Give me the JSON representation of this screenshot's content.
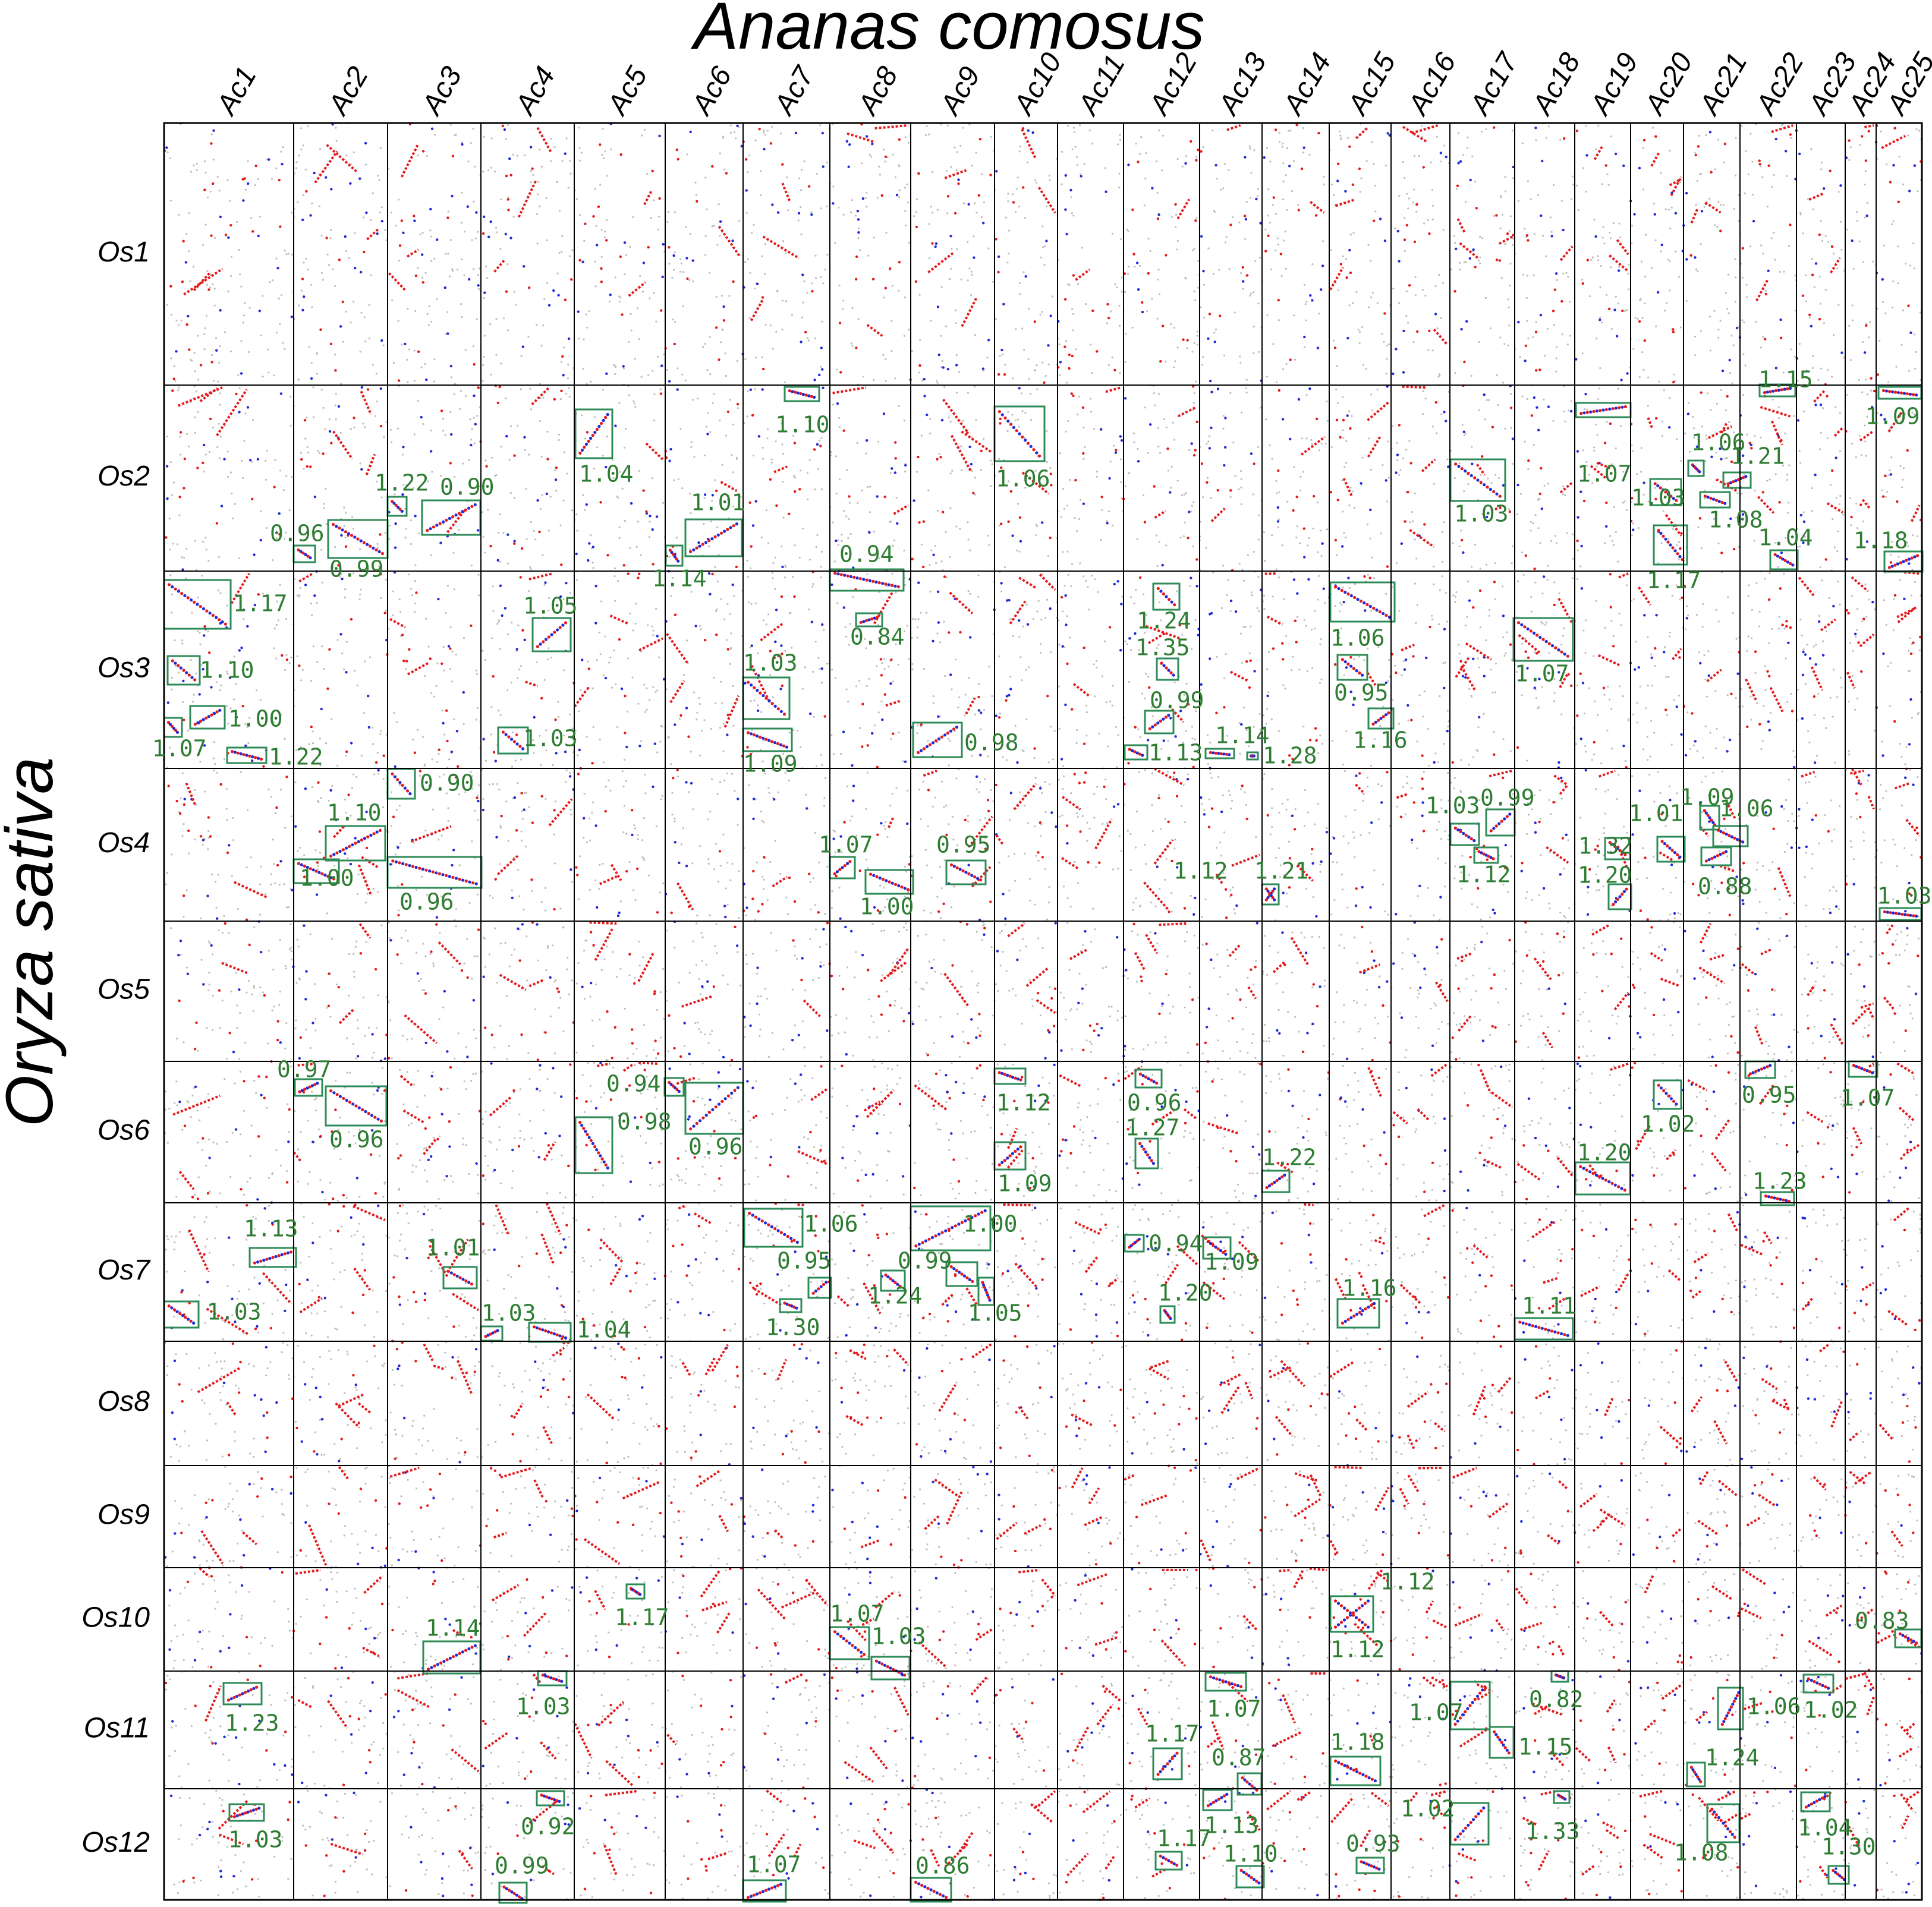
{
  "chart_data": {
    "type": "scatter",
    "title": "Ananas comosus",
    "ylabel": "Oryza sativa",
    "x_chromosomes": [
      "Ac1",
      "Ac2",
      "Ac3",
      "Ac4",
      "Ac5",
      "Ac6",
      "Ac7",
      "Ac8",
      "Ac9",
      "Ac10",
      "Ac11",
      "Ac12",
      "Ac13",
      "Ac14",
      "Ac15",
      "Ac16",
      "Ac17",
      "Ac18",
      "Ac19",
      "Ac20",
      "Ac21",
      "Ac22",
      "Ac23",
      "Ac24",
      "Ac25"
    ],
    "y_chromosomes": [
      "Os1",
      "Os2",
      "Os3",
      "Os4",
      "Os5",
      "Os6",
      "Os7",
      "Os8",
      "Os9",
      "Os10",
      "Os11",
      "Os12"
    ],
    "grid": true,
    "highlighted_blocks": [
      {
        "os": "Os2",
        "ac": "Ac7",
        "ks": "1.10"
      },
      {
        "os": "Os2",
        "ac": "Ac5",
        "ks": "1.04"
      },
      {
        "os": "Os2",
        "ac": "Ac10",
        "ks": "1.06"
      },
      {
        "os": "Os2",
        "ac": "Ac3",
        "ks": "1.22"
      },
      {
        "os": "Os2",
        "ac": "Ac3",
        "ks": "0.90"
      },
      {
        "os": "Os2",
        "ac": "Ac1",
        "ks": "0.96"
      },
      {
        "os": "Os2",
        "ac": "Ac2",
        "ks": "0.99"
      },
      {
        "os": "Os2",
        "ac": "Ac6",
        "ks": "1.01"
      },
      {
        "os": "Os2",
        "ac": "Ac6",
        "ks": "1.14"
      },
      {
        "os": "Os2",
        "ac": "Ac17",
        "ks": "1.03"
      },
      {
        "os": "Os2",
        "ac": "Ac19",
        "ks": "1.07"
      },
      {
        "os": "Os2",
        "ac": "Ac20",
        "ks": "1.03"
      },
      {
        "os": "Os2",
        "ac": "Ac20",
        "ks": "1.06"
      },
      {
        "os": "Os2",
        "ac": "Ac21",
        "ks": "1.21"
      },
      {
        "os": "Os2",
        "ac": "Ac21",
        "ks": "1.08"
      },
      {
        "os": "Os2",
        "ac": "Ac20",
        "ks": "1.17"
      },
      {
        "os": "Os2",
        "ac": "Ac22",
        "ks": "1.15"
      },
      {
        "os": "Os2",
        "ac": "Ac22",
        "ks": "1.04"
      },
      {
        "os": "Os2",
        "ac": "Ac25",
        "ks": "1.09"
      },
      {
        "os": "Os2",
        "ac": "Ac25",
        "ks": "1.18"
      },
      {
        "os": "Os3",
        "ac": "Ac1",
        "ks": "1.17"
      },
      {
        "os": "Os3",
        "ac": "Ac1",
        "ks": "1.10"
      },
      {
        "os": "Os3",
        "ac": "Ac1",
        "ks": "1.00"
      },
      {
        "os": "Os3",
        "ac": "Ac1",
        "ks": "1.07"
      },
      {
        "os": "Os3",
        "ac": "Ac1",
        "ks": "1.22"
      },
      {
        "os": "Os3",
        "ac": "Ac4",
        "ks": "1.05"
      },
      {
        "os": "Os3",
        "ac": "Ac4",
        "ks": "1.03"
      },
      {
        "os": "Os3",
        "ac": "Ac8",
        "ks": "0.94"
      },
      {
        "os": "Os3",
        "ac": "Ac8",
        "ks": "0.84"
      },
      {
        "os": "Os3",
        "ac": "Ac7",
        "ks": "1.03"
      },
      {
        "os": "Os3",
        "ac": "Ac7",
        "ks": "1.09"
      },
      {
        "os": "Os3",
        "ac": "Ac9",
        "ks": "0.98"
      },
      {
        "os": "Os3",
        "ac": "Ac12",
        "ks": "1.24"
      },
      {
        "os": "Os3",
        "ac": "Ac12",
        "ks": "1.35"
      },
      {
        "os": "Os3",
        "ac": "Ac12",
        "ks": "0.99"
      },
      {
        "os": "Os3",
        "ac": "Ac12",
        "ks": "1.13"
      },
      {
        "os": "Os3",
        "ac": "Ac13",
        "ks": "1.14"
      },
      {
        "os": "Os3",
        "ac": "Ac13",
        "ks": "1.28"
      },
      {
        "os": "Os3",
        "ac": "Ac15",
        "ks": "1.06"
      },
      {
        "os": "Os3",
        "ac": "Ac15",
        "ks": "0.95"
      },
      {
        "os": "Os3",
        "ac": "Ac15",
        "ks": "1.16"
      },
      {
        "os": "Os3",
        "ac": "Ac18",
        "ks": "1.07"
      },
      {
        "os": "Os4",
        "ac": "Ac3",
        "ks": "0.90"
      },
      {
        "os": "Os4",
        "ac": "Ac2",
        "ks": "1.10"
      },
      {
        "os": "Os4",
        "ac": "Ac2",
        "ks": "1.00"
      },
      {
        "os": "Os4",
        "ac": "Ac3",
        "ks": "0.96"
      },
      {
        "os": "Os4",
        "ac": "Ac8",
        "ks": "1.07"
      },
      {
        "os": "Os4",
        "ac": "Ac8",
        "ks": "1.00"
      },
      {
        "os": "Os4",
        "ac": "Ac9",
        "ks": "0.95"
      },
      {
        "os": "Os4",
        "ac": "Ac12",
        "ks": "1.12"
      },
      {
        "os": "Os4",
        "ac": "Ac14",
        "ks": "1.21"
      },
      {
        "os": "Os4",
        "ac": "Ac17",
        "ks": "1.03"
      },
      {
        "os": "Os4",
        "ac": "Ac17",
        "ks": "0.99"
      },
      {
        "os": "Os4",
        "ac": "Ac17",
        "ks": "1.12"
      },
      {
        "os": "Os4",
        "ac": "Ac19",
        "ks": "1.32"
      },
      {
        "os": "Os4",
        "ac": "Ac19",
        "ks": "1.20"
      },
      {
        "os": "Os4",
        "ac": "Ac20",
        "ks": "1.01"
      },
      {
        "os": "Os4",
        "ac": "Ac21",
        "ks": "1.09"
      },
      {
        "os": "Os4",
        "ac": "Ac21",
        "ks": "0.88"
      },
      {
        "os": "Os4",
        "ac": "Ac21",
        "ks": "1.06"
      },
      {
        "os": "Os4",
        "ac": "Ac25",
        "ks": "1.03"
      },
      {
        "os": "Os6",
        "ac": "Ac1",
        "ks": "0.97"
      },
      {
        "os": "Os6",
        "ac": "Ac2",
        "ks": "0.96"
      },
      {
        "os": "Os6",
        "ac": "Ac6",
        "ks": "0.94"
      },
      {
        "os": "Os6",
        "ac": "Ac6",
        "ks": "0.96"
      },
      {
        "os": "Os6",
        "ac": "Ac5",
        "ks": "0.98"
      },
      {
        "os": "Os6",
        "ac": "Ac10",
        "ks": "1.12"
      },
      {
        "os": "Os6",
        "ac": "Ac10",
        "ks": "1.09"
      },
      {
        "os": "Os6",
        "ac": "Ac12",
        "ks": "0.96"
      },
      {
        "os": "Os6",
        "ac": "Ac12",
        "ks": "1.27"
      },
      {
        "os": "Os6",
        "ac": "Ac14",
        "ks": "1.22"
      },
      {
        "os": "Os6",
        "ac": "Ac20",
        "ks": "1.02"
      },
      {
        "os": "Os6",
        "ac": "Ac19",
        "ks": "1.20"
      },
      {
        "os": "Os6",
        "ac": "Ac22",
        "ks": "0.95"
      },
      {
        "os": "Os6",
        "ac": "Ac22",
        "ks": "1.23"
      },
      {
        "os": "Os6",
        "ac": "Ac24",
        "ks": "1.07"
      },
      {
        "os": "Os7",
        "ac": "Ac2",
        "ks": "1.13"
      },
      {
        "os": "Os7",
        "ac": "Ac1",
        "ks": "1.03"
      },
      {
        "os": "Os7",
        "ac": "Ac3",
        "ks": "1.01"
      },
      {
        "os": "Os7",
        "ac": "Ac4",
        "ks": "1.03"
      },
      {
        "os": "Os7",
        "ac": "Ac4",
        "ks": "1.04"
      },
      {
        "os": "Os7",
        "ac": "Ac7",
        "ks": "1.06"
      },
      {
        "os": "Os7",
        "ac": "Ac7",
        "ks": "0.95"
      },
      {
        "os": "Os7",
        "ac": "Ac7",
        "ks": "1.30"
      },
      {
        "os": "Os7",
        "ac": "Ac8",
        "ks": "1.24"
      },
      {
        "os": "Os7",
        "ac": "Ac9",
        "ks": "1.00"
      },
      {
        "os": "Os7",
        "ac": "Ac9",
        "ks": "0.99"
      },
      {
        "os": "Os7",
        "ac": "Ac9",
        "ks": "1.05"
      },
      {
        "os": "Os7",
        "ac": "Ac12",
        "ks": "0.94"
      },
      {
        "os": "Os7",
        "ac": "Ac13",
        "ks": "1.09"
      },
      {
        "os": "Os7",
        "ac": "Ac12",
        "ks": "1.20"
      },
      {
        "os": "Os7",
        "ac": "Ac15",
        "ks": "1.16"
      },
      {
        "os": "Os7",
        "ac": "Ac18",
        "ks": "1.11"
      },
      {
        "os": "Os10",
        "ac": "Ac5",
        "ks": "1.17"
      },
      {
        "os": "Os10",
        "ac": "Ac3",
        "ks": "1.14"
      },
      {
        "os": "Os10",
        "ac": "Ac8",
        "ks": "1.07"
      },
      {
        "os": "Os10",
        "ac": "Ac8",
        "ks": "1.03"
      },
      {
        "os": "Os10",
        "ac": "Ac15",
        "ks": "1.12"
      },
      {
        "os": "Os10",
        "ac": "Ac15",
        "ks": "1.12"
      },
      {
        "os": "Os10",
        "ac": "Ac25",
        "ks": "0.83"
      },
      {
        "os": "Os11",
        "ac": "Ac1",
        "ks": "1.23"
      },
      {
        "os": "Os11",
        "ac": "Ac4",
        "ks": "1.03"
      },
      {
        "os": "Os11",
        "ac": "Ac13",
        "ks": "1.07"
      },
      {
        "os": "Os11",
        "ac": "Ac12",
        "ks": "1.17"
      },
      {
        "os": "Os11",
        "ac": "Ac13",
        "ks": "0.87"
      },
      {
        "os": "Os11",
        "ac": "Ac15",
        "ks": "1.18"
      },
      {
        "os": "Os11",
        "ac": "Ac17",
        "ks": "1.07"
      },
      {
        "os": "Os11",
        "ac": "Ac17",
        "ks": "1.15"
      },
      {
        "os": "Os11",
        "ac": "Ac18",
        "ks": "0.82"
      },
      {
        "os": "Os11",
        "ac": "Ac21",
        "ks": "1.06"
      },
      {
        "os": "Os11",
        "ac": "Ac21",
        "ks": "1.24"
      },
      {
        "os": "Os11",
        "ac": "Ac23",
        "ks": "1.02"
      },
      {
        "os": "Os12",
        "ac": "Ac1",
        "ks": "1.03"
      },
      {
        "os": "Os12",
        "ac": "Ac4",
        "ks": "0.92"
      },
      {
        "os": "Os12",
        "ac": "Ac4",
        "ks": "0.99"
      },
      {
        "os": "Os12",
        "ac": "Ac7",
        "ks": "1.07"
      },
      {
        "os": "Os12",
        "ac": "Ac9",
        "ks": "0.86"
      },
      {
        "os": "Os12",
        "ac": "Ac12",
        "ks": "1.17"
      },
      {
        "os": "Os12",
        "ac": "Ac13",
        "ks": "1.13"
      },
      {
        "os": "Os12",
        "ac": "Ac13",
        "ks": "1.10"
      },
      {
        "os": "Os12",
        "ac": "Ac15",
        "ks": "0.93"
      },
      {
        "os": "Os12",
        "ac": "Ac17",
        "ks": "1.02"
      },
      {
        "os": "Os12",
        "ac": "Ac18",
        "ks": "1.33"
      },
      {
        "os": "Os12",
        "ac": "Ac21",
        "ks": "1.08"
      },
      {
        "os": "Os12",
        "ac": "Ac23",
        "ks": "1.04"
      },
      {
        "os": "Os12",
        "ac": "Ac23",
        "ks": "1.30"
      }
    ]
  },
  "colors": {
    "gene_pair_red": "#e41a1c",
    "gene_pair_blue": "#1f2bd6",
    "background_dot": "#bdbdbd",
    "block_box": "#2e8b57",
    "ks_label": "#2e7d32",
    "grid_line": "#000000"
  }
}
